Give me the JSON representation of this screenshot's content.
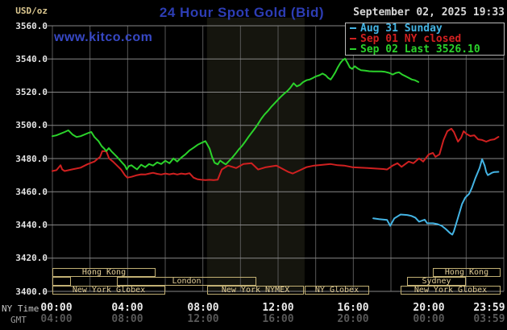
{
  "header": {
    "units_label": "USD/oz",
    "title": "24 Hour Spot Gold (Bid)",
    "datetime": "September 02, 2025 19:33",
    "watermark": "www.kitco.com"
  },
  "legend": {
    "items": [
      {
        "label": "Aug 31 Sunday",
        "color": "#44b4e4"
      },
      {
        "label": "Sep 01 NY closed",
        "color": "#d02020"
      },
      {
        "label": "Sep 02 Last 3526.10",
        "color": "#2bd22b"
      }
    ]
  },
  "axis": {
    "ny_time_label": "NY Time",
    "gmt_label": "GMT",
    "y_ticks": [
      "3560.0",
      "3540.0",
      "3520.0",
      "3500.0",
      "3480.0",
      "3460.0",
      "3440.0",
      "3420.0",
      "3400.0"
    ],
    "x_ticks_ny": [
      "00:00",
      "04:00",
      "08:00",
      "12:00",
      "16:00",
      "20:00",
      "23:59"
    ],
    "x_ticks_gmt": [
      "04:00",
      "08:00",
      "12:00",
      "16:00",
      "20:00",
      "00:00",
      "03:59"
    ]
  },
  "sessions": {
    "rows": [
      [
        {
          "label": "Hong Kong",
          "x1": 65,
          "x2": 193
        },
        {
          "label": "Hong Kong",
          "x1": 537,
          "x2": 621
        }
      ],
      [
        {
          "label": "",
          "x1": 65,
          "x2": 88
        },
        {
          "label": "London",
          "x1": 145,
          "x2": 318
        },
        {
          "label": "Sydney",
          "x1": 505,
          "x2": 578
        }
      ],
      [
        {
          "label": "New York Globex",
          "x1": 65,
          "x2": 205
        },
        {
          "label": "New York NYMEX",
          "x1": 257,
          "x2": 377
        },
        {
          "label": "NY Globex",
          "x1": 378,
          "x2": 458
        },
        {
          "label": "New York Globex",
          "x1": 497,
          "x2": 621
        }
      ]
    ]
  },
  "chart_data": {
    "type": "line",
    "title": "24 Hour Spot Gold (Bid)",
    "xlabel": "NY Time (top) / GMT (bottom)",
    "ylabel": "USD/oz",
    "x_unit": "minutes since 00:00 NY time",
    "x_range": [
      0,
      1439
    ],
    "ylim": [
      3400,
      3560
    ],
    "y_tick_step": 20,
    "grid": true,
    "legend_position": "top-right",
    "session_highlight_band_minutes": [
      493,
      804
    ],
    "series": [
      {
        "name": "Aug 31 Sunday",
        "color": "#44b4e4",
        "points": [
          [
            1023,
            3444.0
          ],
          [
            1041,
            3443.5
          ],
          [
            1067,
            3443.0
          ],
          [
            1077,
            3439.5
          ],
          [
            1090,
            3444.0
          ],
          [
            1110,
            3446.3
          ],
          [
            1131,
            3446.0
          ],
          [
            1144,
            3445.5
          ],
          [
            1157,
            3444.4
          ],
          [
            1169,
            3442.0
          ],
          [
            1187,
            3443.2
          ],
          [
            1195,
            3441.0
          ],
          [
            1213,
            3441.0
          ],
          [
            1228,
            3440.5
          ],
          [
            1241,
            3439.5
          ],
          [
            1254,
            3437.6
          ],
          [
            1267,
            3435.2
          ],
          [
            1275,
            3434.2
          ],
          [
            1280,
            3436.2
          ],
          [
            1293,
            3444.4
          ],
          [
            1306,
            3452.6
          ],
          [
            1316,
            3456.4
          ],
          [
            1329,
            3458.9
          ],
          [
            1337,
            3462.2
          ],
          [
            1349,
            3468.5
          ],
          [
            1362,
            3474.3
          ],
          [
            1370,
            3479.6
          ],
          [
            1378,
            3475.8
          ],
          [
            1383,
            3471.9
          ],
          [
            1388,
            3470.0
          ],
          [
            1401,
            3471.4
          ],
          [
            1409,
            3471.9
          ],
          [
            1422,
            3472.0
          ]
        ]
      },
      {
        "name": "Sep 01 NY closed",
        "color": "#d02020",
        "points": [
          [
            0,
            3472.5
          ],
          [
            13,
            3473.0
          ],
          [
            26,
            3476.0
          ],
          [
            31,
            3473.5
          ],
          [
            39,
            3472.5
          ],
          [
            64,
            3473.5
          ],
          [
            90,
            3474.5
          ],
          [
            111,
            3476.5
          ],
          [
            134,
            3478.2
          ],
          [
            152,
            3481.0
          ],
          [
            159,
            3484.5
          ],
          [
            172,
            3484.4
          ],
          [
            181,
            3480.0
          ],
          [
            193,
            3478.2
          ],
          [
            206,
            3475.8
          ],
          [
            219,
            3473.4
          ],
          [
            231,
            3470.0
          ],
          [
            239,
            3468.5
          ],
          [
            252,
            3469.0
          ],
          [
            270,
            3470.0
          ],
          [
            283,
            3470.5
          ],
          [
            296,
            3470.4
          ],
          [
            309,
            3471.0
          ],
          [
            321,
            3471.4
          ],
          [
            334,
            3470.8
          ],
          [
            347,
            3470.4
          ],
          [
            360,
            3471.0
          ],
          [
            373,
            3470.5
          ],
          [
            386,
            3471.0
          ],
          [
            398,
            3470.4
          ],
          [
            411,
            3471.0
          ],
          [
            424,
            3470.6
          ],
          [
            437,
            3471.2
          ],
          [
            450,
            3468.5
          ],
          [
            463,
            3467.5
          ],
          [
            476,
            3467.2
          ],
          [
            488,
            3467.0
          ],
          [
            501,
            3467.2
          ],
          [
            514,
            3467.0
          ],
          [
            527,
            3467.3
          ],
          [
            540,
            3473.4
          ],
          [
            560,
            3475.8
          ],
          [
            586,
            3474.3
          ],
          [
            609,
            3476.7
          ],
          [
            635,
            3477.2
          ],
          [
            656,
            3473.4
          ],
          [
            681,
            3474.8
          ],
          [
            714,
            3475.8
          ],
          [
            753,
            3471.9
          ],
          [
            766,
            3471.0
          ],
          [
            790,
            3473.0
          ],
          [
            810,
            3474.8
          ],
          [
            835,
            3475.8
          ],
          [
            861,
            3476.2
          ],
          [
            887,
            3476.7
          ],
          [
            910,
            3476.0
          ],
          [
            930,
            3475.8
          ],
          [
            956,
            3474.8
          ],
          [
            980,
            3474.5
          ],
          [
            1005,
            3474.3
          ],
          [
            1030,
            3474.0
          ],
          [
            1055,
            3473.7
          ],
          [
            1067,
            3473.4
          ],
          [
            1085,
            3475.8
          ],
          [
            1100,
            3477.2
          ],
          [
            1113,
            3475.0
          ],
          [
            1136,
            3478.2
          ],
          [
            1151,
            3477.2
          ],
          [
            1169,
            3480.1
          ],
          [
            1182,
            3478.2
          ],
          [
            1200,
            3482.5
          ],
          [
            1213,
            3483.4
          ],
          [
            1221,
            3481.0
          ],
          [
            1234,
            3482.5
          ],
          [
            1247,
            3491.2
          ],
          [
            1259,
            3496.5
          ],
          [
            1272,
            3498.0
          ],
          [
            1280,
            3496.0
          ],
          [
            1293,
            3490.2
          ],
          [
            1303,
            3492.6
          ],
          [
            1311,
            3496.5
          ],
          [
            1319,
            3495.0
          ],
          [
            1332,
            3493.6
          ],
          [
            1345,
            3494.0
          ],
          [
            1357,
            3491.6
          ],
          [
            1370,
            3491.2
          ],
          [
            1383,
            3490.2
          ],
          [
            1396,
            3491.2
          ],
          [
            1409,
            3491.6
          ],
          [
            1422,
            3493.1
          ]
        ]
      },
      {
        "name": "Sep 02",
        "last": 3526.1,
        "color": "#2bd22b",
        "points": [
          [
            0,
            3493.5
          ],
          [
            13,
            3494.0
          ],
          [
            26,
            3495.0
          ],
          [
            39,
            3496.0
          ],
          [
            51,
            3497.0
          ],
          [
            64,
            3494.5
          ],
          [
            77,
            3493.0
          ],
          [
            90,
            3493.5
          ],
          [
            103,
            3494.5
          ],
          [
            116,
            3495.5
          ],
          [
            124,
            3496.0
          ],
          [
            134,
            3493.0
          ],
          [
            147,
            3490.5
          ],
          [
            157,
            3487.5
          ],
          [
            165,
            3486.0
          ],
          [
            172,
            3484.5
          ],
          [
            180,
            3486.3
          ],
          [
            188,
            3484.4
          ],
          [
            198,
            3482.5
          ],
          [
            206,
            3481.0
          ],
          [
            213,
            3479.5
          ],
          [
            224,
            3477.2
          ],
          [
            231,
            3475.8
          ],
          [
            237,
            3473.5
          ],
          [
            244,
            3475.5
          ],
          [
            252,
            3476.0
          ],
          [
            262,
            3474.5
          ],
          [
            270,
            3473.5
          ],
          [
            283,
            3476.3
          ],
          [
            296,
            3474.8
          ],
          [
            308,
            3476.7
          ],
          [
            321,
            3475.8
          ],
          [
            334,
            3477.7
          ],
          [
            347,
            3476.7
          ],
          [
            360,
            3478.7
          ],
          [
            373,
            3477.2
          ],
          [
            386,
            3480.1
          ],
          [
            398,
            3478.2
          ],
          [
            411,
            3480.6
          ],
          [
            424,
            3482.5
          ],
          [
            437,
            3484.9
          ],
          [
            450,
            3486.5
          ],
          [
            463,
            3488.3
          ],
          [
            476,
            3489.5
          ],
          [
            488,
            3490.5
          ],
          [
            501,
            3486.0
          ],
          [
            509,
            3481.0
          ],
          [
            517,
            3477.5
          ],
          [
            527,
            3476.5
          ],
          [
            535,
            3478.8
          ],
          [
            545,
            3477.4
          ],
          [
            553,
            3476.5
          ],
          [
            563,
            3478.5
          ],
          [
            573,
            3480.5
          ],
          [
            584,
            3483.0
          ],
          [
            594,
            3485.5
          ],
          [
            604,
            3487.5
          ],
          [
            614,
            3490.0
          ],
          [
            625,
            3493.0
          ],
          [
            635,
            3495.5
          ],
          [
            645,
            3498.0
          ],
          [
            656,
            3501.0
          ],
          [
            666,
            3504.0
          ],
          [
            676,
            3506.5
          ],
          [
            686,
            3508.5
          ],
          [
            697,
            3511.0
          ],
          [
            707,
            3513.0
          ],
          [
            717,
            3515.0
          ],
          [
            727,
            3517.0
          ],
          [
            738,
            3519.0
          ],
          [
            748,
            3520.5
          ],
          [
            758,
            3522.5
          ],
          [
            769,
            3525.4
          ],
          [
            779,
            3523.5
          ],
          [
            789,
            3524.3
          ],
          [
            799,
            3526.0
          ],
          [
            810,
            3527.2
          ],
          [
            820,
            3527.6
          ],
          [
            830,
            3528.5
          ],
          [
            840,
            3529.5
          ],
          [
            851,
            3530.2
          ],
          [
            861,
            3531.2
          ],
          [
            871,
            3530.2
          ],
          [
            879,
            3528.6
          ],
          [
            887,
            3527.6
          ],
          [
            894,
            3529.5
          ],
          [
            902,
            3532.0
          ],
          [
            910,
            3535.0
          ],
          [
            918,
            3537.5
          ],
          [
            925,
            3539.2
          ],
          [
            933,
            3540.2
          ],
          [
            941,
            3537.6
          ],
          [
            948,
            3535.0
          ],
          [
            956,
            3534.0
          ],
          [
            964,
            3535.6
          ],
          [
            974,
            3534.2
          ],
          [
            984,
            3533.2
          ],
          [
            997,
            3533.0
          ],
          [
            1010,
            3532.6
          ],
          [
            1023,
            3532.5
          ],
          [
            1036,
            3532.5
          ],
          [
            1049,
            3532.5
          ],
          [
            1061,
            3532.2
          ],
          [
            1074,
            3531.6
          ],
          [
            1085,
            3530.6
          ],
          [
            1095,
            3531.6
          ],
          [
            1105,
            3532.0
          ],
          [
            1115,
            3530.6
          ],
          [
            1126,
            3529.6
          ],
          [
            1136,
            3528.6
          ],
          [
            1146,
            3527.6
          ],
          [
            1156,
            3527.2
          ],
          [
            1167,
            3526.1
          ]
        ]
      }
    ],
    "colors": {
      "background": "#000000",
      "grid_horizontal": "#878787",
      "grid_vertical": "#585858",
      "session_band": "#15150e",
      "session_box_border": "#c2b074",
      "session_box_text": "#e2cd96",
      "title_blue": "#2d3db4",
      "watermark_blue": "#3748c4"
    }
  }
}
